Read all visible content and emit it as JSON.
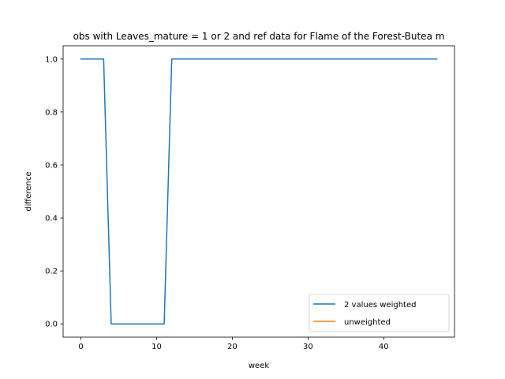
{
  "chart_data": {
    "type": "line",
    "title": "obs with Leaves_mature = 1 or 2 and ref data for Flame of the Forest-Butea m",
    "xlabel": "week",
    "ylabel": "difference",
    "xlim": [
      -2.35,
      49.35
    ],
    "ylim": [
      -0.05,
      1.05
    ],
    "xticks": [
      0,
      10,
      20,
      30,
      40
    ],
    "xtick_labels": [
      "0",
      "10",
      "20",
      "30",
      "40"
    ],
    "yticks": [
      0.0,
      0.2,
      0.4,
      0.6,
      0.8,
      1.0
    ],
    "ytick_labels": [
      "0.0",
      "0.2",
      "0.4",
      "0.6",
      "0.8",
      "1.0"
    ],
    "grid": false,
    "legend_placement": "lower-right",
    "series": [
      {
        "name": "2 values weighted",
        "color": "#1f77b4",
        "x": [
          0,
          1,
          2,
          3,
          4,
          5,
          6,
          7,
          8,
          9,
          10,
          11,
          12,
          13,
          14,
          15,
          16,
          17,
          18,
          19,
          20,
          21,
          22,
          23,
          24,
          25,
          26,
          27,
          28,
          29,
          30,
          31,
          32,
          33,
          34,
          35,
          36,
          37,
          38,
          39,
          40,
          41,
          42,
          43,
          44,
          45,
          46,
          47
        ],
        "values": [
          1,
          1,
          1,
          1,
          0,
          0,
          0,
          0,
          0,
          0,
          0,
          0,
          1,
          1,
          1,
          1,
          1,
          1,
          1,
          1,
          1,
          1,
          1,
          1,
          1,
          1,
          1,
          1,
          1,
          1,
          1,
          1,
          1,
          1,
          1,
          1,
          1,
          1,
          1,
          1,
          1,
          1,
          1,
          1,
          1,
          1,
          1,
          1
        ]
      },
      {
        "name": "unweighted",
        "color": "#ff7f0e",
        "x": [],
        "values": []
      }
    ]
  }
}
